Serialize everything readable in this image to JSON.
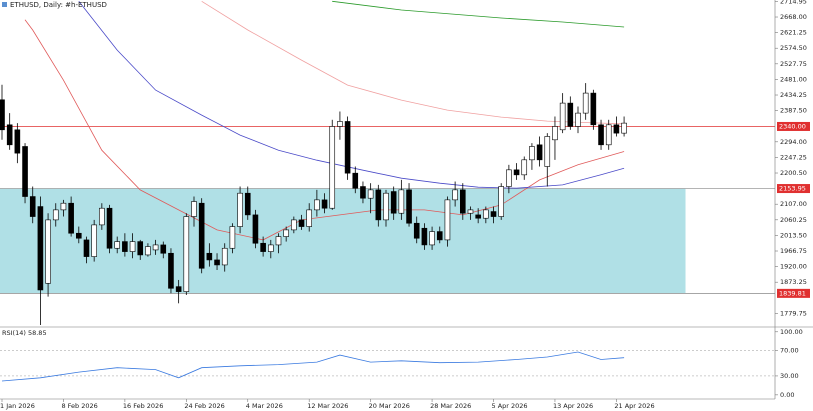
{
  "chart_data": {
    "type": "candlestick",
    "title": "ETHUSD, Daily: #h-ETHUSD",
    "categories": [
      "1 Jan 2026",
      null,
      null,
      null,
      null,
      null,
      null,
      null,
      "8 Feb 2026",
      null,
      null,
      null,
      null,
      null,
      null,
      null,
      "16 Feb 2026",
      null,
      null,
      null,
      null,
      null,
      null,
      null,
      "24 Feb 2026",
      null,
      null,
      null,
      null,
      null,
      null,
      null,
      "4 Mar 2026",
      null,
      null,
      null,
      null,
      null,
      null,
      null,
      "12 Mar 2026",
      null,
      null,
      null,
      null,
      null,
      null,
      null,
      "20 Mar 2026",
      null,
      null,
      null,
      null,
      null,
      null,
      null,
      "28 Mar 2026",
      null,
      null,
      null,
      null,
      null,
      null,
      null,
      "5 Apr 2026",
      null,
      null,
      null,
      null,
      null,
      null,
      null,
      "13 Apr 2026",
      null,
      null,
      null,
      null,
      null,
      null,
      null,
      "21 Apr 2026",
      null
    ],
    "ohlc": [
      [
        2420,
        2465,
        2300,
        2330
      ],
      [
        2345,
        2380,
        2270,
        2285
      ],
      [
        2330,
        2350,
        2230,
        2260
      ],
      [
        2280,
        2290,
        2110,
        2130
      ],
      [
        2130,
        2160,
        2050,
        2070
      ],
      [
        2100,
        2130,
        1745,
        1850
      ],
      [
        1870,
        2080,
        1830,
        2060
      ],
      [
        2060,
        2110,
        2040,
        2090
      ],
      [
        2090,
        2120,
        2070,
        2110
      ],
      [
        2110,
        2130,
        2010,
        2020
      ],
      [
        2020,
        2040,
        1990,
        2005
      ],
      [
        2000,
        2010,
        1930,
        1950
      ],
      [
        1950,
        2060,
        1935,
        2045
      ],
      [
        2045,
        2110,
        2030,
        2095
      ],
      [
        2095,
        2105,
        1960,
        1975
      ],
      [
        1975,
        2010,
        1960,
        1995
      ],
      [
        1995,
        2020,
        1950,
        1965
      ],
      [
        1965,
        2020,
        1945,
        1995
      ],
      [
        1995,
        2000,
        1940,
        1955
      ],
      [
        1955,
        1990,
        1950,
        1980
      ],
      [
        1970,
        2000,
        1955,
        1985
      ],
      [
        1985,
        1995,
        1945,
        1960
      ],
      [
        1960,
        1975,
        1840,
        1855
      ],
      [
        1860,
        1880,
        1810,
        1845
      ],
      [
        1845,
        2080,
        1835,
        2070
      ],
      [
        2070,
        2130,
        2040,
        2115
      ],
      [
        2110,
        2125,
        1900,
        1915
      ],
      [
        1960,
        1990,
        1920,
        1940
      ],
      [
        1940,
        1960,
        1910,
        1925
      ],
      [
        1925,
        1990,
        1905,
        1975
      ],
      [
        1975,
        2050,
        1960,
        2040
      ],
      [
        2040,
        2160,
        2020,
        2140
      ],
      [
        2140,
        2160,
        2060,
        2075
      ],
      [
        2075,
        2090,
        1975,
        1990
      ],
      [
        1990,
        2010,
        1950,
        1965
      ],
      [
        1965,
        2000,
        1945,
        1985
      ],
      [
        1985,
        2020,
        1960,
        2010
      ],
      [
        2010,
        2040,
        1995,
        2030
      ],
      [
        2030,
        2070,
        2020,
        2060
      ],
      [
        2060,
        2075,
        2030,
        2040
      ],
      [
        2040,
        2110,
        2025,
        2090
      ],
      [
        2090,
        2150,
        2070,
        2120
      ],
      [
        2120,
        2140,
        2080,
        2095
      ],
      [
        2095,
        2360,
        2090,
        2340
      ],
      [
        2340,
        2385,
        2300,
        2355
      ],
      [
        2355,
        2370,
        2180,
        2200
      ],
      [
        2200,
        2220,
        2140,
        2155
      ],
      [
        2160,
        2175,
        2110,
        2125
      ],
      [
        2125,
        2170,
        2080,
        2150
      ],
      [
        2150,
        2165,
        2040,
        2060
      ],
      [
        2060,
        2150,
        2040,
        2140
      ],
      [
        2145,
        2160,
        2060,
        2080
      ],
      [
        2080,
        2180,
        2060,
        2150
      ],
      [
        2150,
        2170,
        2040,
        2050
      ],
      [
        2050,
        2070,
        1990,
        2005
      ],
      [
        2035,
        2050,
        1970,
        1985
      ],
      [
        1985,
        2040,
        1970,
        2025
      ],
      [
        2025,
        2040,
        1990,
        2000
      ],
      [
        2000,
        2130,
        1980,
        2120
      ],
      [
        2120,
        2175,
        2100,
        2150
      ],
      [
        2150,
        2170,
        2060,
        2080
      ],
      [
        2080,
        2100,
        2060,
        2090
      ],
      [
        2075,
        2095,
        2050,
        2065
      ],
      [
        2065,
        2100,
        2050,
        2090
      ],
      [
        2085,
        2100,
        2050,
        2070
      ],
      [
        2070,
        2170,
        2060,
        2160
      ],
      [
        2160,
        2225,
        2140,
        2210
      ],
      [
        2210,
        2230,
        2180,
        2195
      ],
      [
        2195,
        2250,
        2180,
        2240
      ],
      [
        2240,
        2290,
        2210,
        2280
      ],
      [
        2285,
        2310,
        2220,
        2240
      ],
      [
        2220,
        2320,
        2160,
        2310
      ],
      [
        2300,
        2370,
        2240,
        2340
      ],
      [
        2330,
        2440,
        2320,
        2410
      ],
      [
        2410,
        2430,
        2330,
        2340
      ],
      [
        2340,
        2400,
        2320,
        2380
      ],
      [
        2380,
        2470,
        2360,
        2440
      ],
      [
        2440,
        2450,
        2330,
        2345
      ],
      [
        2345,
        2360,
        2270,
        2285
      ],
      [
        2285,
        2360,
        2270,
        2345
      ],
      [
        2345,
        2370,
        2310,
        2320
      ],
      [
        2320,
        2370,
        2310,
        2350
      ]
    ],
    "up_color": "#ffffff",
    "down_color": "#000000",
    "ylim": [
      1742,
      2719
    ],
    "yticks": [
      {
        "value": 2714.95,
        "label": "2714.95"
      },
      {
        "value": 2668,
        "label": "2668.00"
      },
      {
        "value": 2621.25,
        "label": "2621.25"
      },
      {
        "value": 2574.5,
        "label": "2574.50"
      },
      {
        "value": 2527.75,
        "label": "2527.75"
      },
      {
        "value": 2481,
        "label": "2481.00"
      },
      {
        "value": 2434.25,
        "label": "2434.25"
      },
      {
        "value": 2387.5,
        "label": "2387.50"
      },
      {
        "value": 2294,
        "label": "2294.00"
      },
      {
        "value": 2247.25,
        "label": "2247.25"
      },
      {
        "value": 2200.5,
        "label": "2200.50"
      },
      {
        "value": 2107,
        "label": "2107.00"
      },
      {
        "value": 2060.25,
        "label": "2060.25"
      },
      {
        "value": 2013.5,
        "label": "2013.50"
      },
      {
        "value": 1966.75,
        "label": "1966.75"
      },
      {
        "value": 1920,
        "label": "1920.00"
      },
      {
        "value": 1873.25,
        "label": "1873.25"
      },
      {
        "value": 1779.75,
        "label": "1779.75"
      }
    ],
    "levels": [
      {
        "value": 2340,
        "label": "2340.00",
        "color": "#e03030"
      },
      {
        "value": 2153.95,
        "label": "2153.95",
        "color": "#e03030"
      },
      {
        "value": 1839.81,
        "label": "1839.81",
        "color": "#e03030"
      }
    ],
    "zone": {
      "from": 1839.81,
      "to": 2153.95,
      "x_end": 89,
      "color": "#b0e0e6"
    },
    "lines": [
      {
        "color": "#e05a5a",
        "x": [
          3,
          4,
          8,
          13,
          18,
          23,
          28,
          34,
          39,
          44,
          49,
          55,
          60,
          65,
          70,
          75,
          81
        ],
        "values": [
          2660,
          2629,
          2479,
          2269,
          2150,
          2090,
          2030,
          2000,
          2060,
          2075,
          2090,
          2090,
          2075,
          2105,
          2180,
          2225,
          2265
        ]
      },
      {
        "color": "#4a4ac8",
        "x": [
          10,
          15,
          20,
          26,
          31,
          36,
          41,
          47,
          52,
          57,
          62,
          67,
          73,
          78,
          81
        ],
        "values": [
          2715,
          2569,
          2449,
          2374,
          2314,
          2269,
          2239,
          2209,
          2185,
          2170,
          2158,
          2155,
          2165,
          2195,
          2215
        ]
      },
      {
        "color": "#f0a0a0",
        "x": [
          26,
          32,
          39,
          45,
          52,
          58,
          65,
          71,
          78,
          81
        ],
        "values": [
          2715,
          2629,
          2539,
          2464,
          2419,
          2389,
          2368,
          2356,
          2350,
          2348
        ]
      },
      {
        "color": "#2a9a2a",
        "x": [
          43,
          52,
          65,
          73,
          81
        ],
        "values": [
          2715,
          2689,
          2665,
          2653,
          2638
        ]
      }
    ],
    "rsi": {
      "label": "RSI(14) 58.85",
      "color": "#3a7ae0",
      "x": [
        0,
        5,
        10,
        15,
        20,
        23,
        26,
        31,
        36,
        41,
        44,
        48,
        52,
        57,
        62,
        67,
        71,
        75,
        78,
        81
      ],
      "values": [
        22,
        27,
        36,
        43,
        40,
        27,
        43,
        46,
        48,
        52,
        63,
        52,
        54,
        51,
        52,
        56,
        60,
        68,
        56,
        58.85
      ],
      "ylim": [
        -5,
        106
      ],
      "yticks": [
        {
          "value": 100,
          "label": "100.00"
        },
        {
          "value": 70,
          "label": "70.00"
        },
        {
          "value": 30,
          "label": "30.00"
        },
        {
          "value": 0,
          "label": "0.00"
        }
      ],
      "dashed": [
        70,
        30
      ]
    }
  }
}
